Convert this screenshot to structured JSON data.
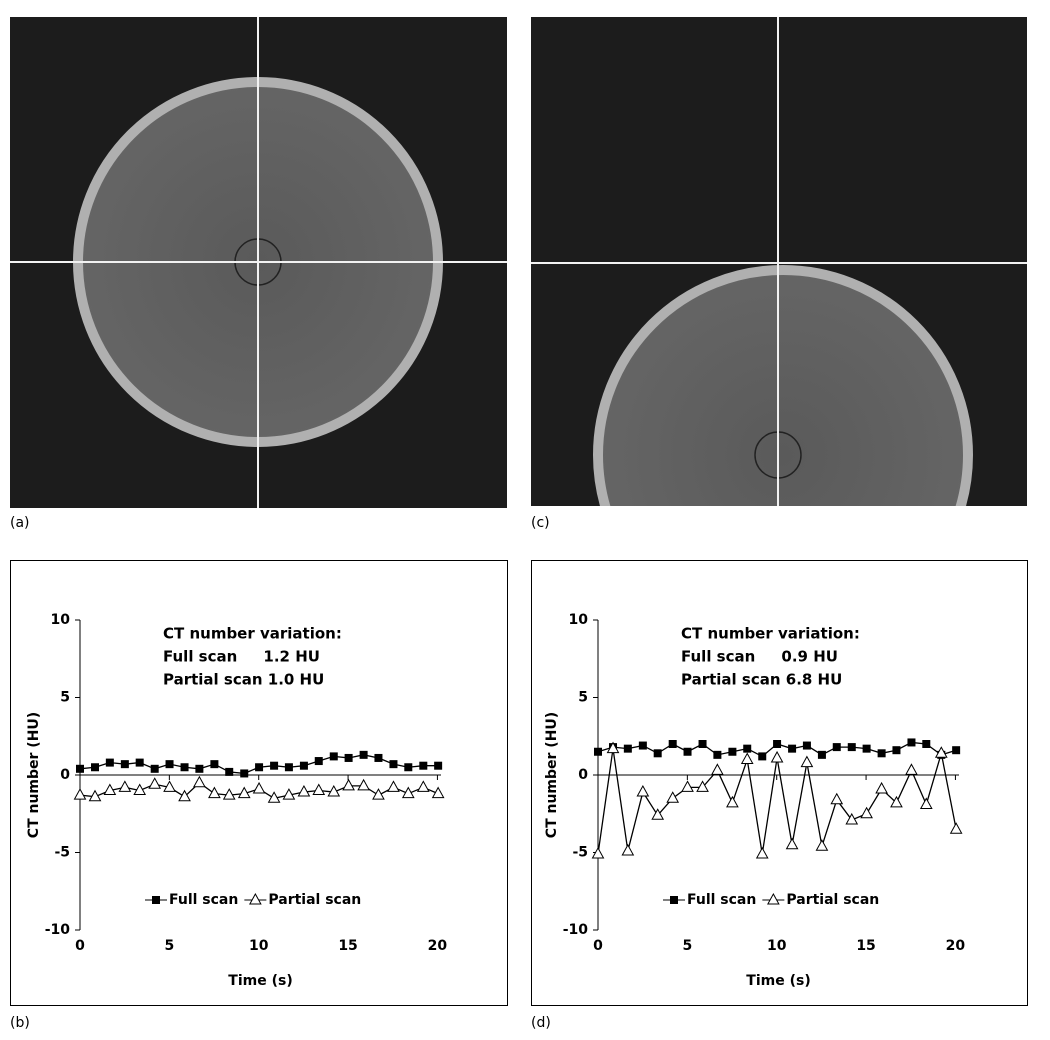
{
  "panels": [
    "(a)",
    "(b)",
    "(c)",
    "(d)"
  ],
  "chart_data": [
    {
      "type": "line",
      "annotations": [
        "CT number variation:",
        "Full scan     1.2 HU",
        "Partial scan 1.0 HU"
      ],
      "x_label": "Time (s)",
      "y_label": "CT number (HU)",
      "x": [
        0,
        0.84,
        1.67,
        2.51,
        3.34,
        4.18,
        5.01,
        5.85,
        6.68,
        7.52,
        8.35,
        9.19,
        10.02,
        10.86,
        11.69,
        12.53,
        13.36,
        14.2,
        15.03,
        15.87,
        16.7,
        17.54,
        18.37,
        19.21,
        20.04
      ],
      "series": [
        {
          "name": "Full scan",
          "color": "#000000",
          "marker": "square",
          "values": [
            0.4,
            0.5,
            0.8,
            0.7,
            0.8,
            0.4,
            0.7,
            0.5,
            0.4,
            0.7,
            0.2,
            0.1,
            0.5,
            0.6,
            0.5,
            0.6,
            0.9,
            1.2,
            1.1,
            1.3,
            1.1,
            0.7,
            0.5,
            0.6,
            0.6
          ]
        },
        {
          "name": "Partial scan",
          "color": "#000000",
          "marker": "triangle",
          "values": [
            -1.3,
            -1.4,
            -1.0,
            -0.8,
            -1.0,
            -0.6,
            -0.8,
            -1.4,
            -0.5,
            -1.2,
            -1.3,
            -1.2,
            -0.9,
            -1.5,
            -1.3,
            -1.1,
            -1.0,
            -1.1,
            -0.7,
            -0.7,
            -1.3,
            -0.8,
            -1.2,
            -0.8,
            -1.2
          ]
        }
      ],
      "xlim": [
        0,
        20.2
      ],
      "ylim": [
        -10,
        10
      ],
      "xticks": [
        0,
        5,
        10,
        15,
        20
      ],
      "yticks": [
        -10,
        -5,
        0,
        5,
        10
      ],
      "legend": "bottom"
    },
    {
      "type": "line",
      "annotations": [
        "CT number variation:",
        "Full scan     0.9 HU",
        "Partial scan 6.8 HU"
      ],
      "x_label": "Time (s)",
      "y_label": "CT number (HU)",
      "x": [
        0,
        0.84,
        1.67,
        2.51,
        3.34,
        4.18,
        5.01,
        5.85,
        6.68,
        7.52,
        8.35,
        9.19,
        10.02,
        10.86,
        11.69,
        12.53,
        13.36,
        14.2,
        15.03,
        15.87,
        16.7,
        17.54,
        18.37,
        19.21,
        20.04
      ],
      "series": [
        {
          "name": "Full scan",
          "color": "#000000",
          "marker": "square",
          "values": [
            1.5,
            1.8,
            1.7,
            1.9,
            1.4,
            2.0,
            1.5,
            2.0,
            1.3,
            1.5,
            1.7,
            1.2,
            2.0,
            1.7,
            1.9,
            1.3,
            1.8,
            1.8,
            1.7,
            1.4,
            1.6,
            2.1,
            2.0,
            1.3,
            1.6
          ]
        },
        {
          "name": "Partial scan",
          "color": "#000000",
          "marker": "triangle",
          "values": [
            -5.1,
            1.7,
            -4.9,
            -1.1,
            -2.6,
            -1.5,
            -0.8,
            -0.8,
            0.3,
            -1.8,
            1.0,
            -5.1,
            1.1,
            -4.5,
            0.8,
            -4.6,
            -1.6,
            -2.9,
            -2.5,
            -0.9,
            -1.8,
            0.3,
            -1.9,
            1.4,
            -3.5
          ]
        }
      ],
      "xlim": [
        0,
        20.2
      ],
      "ylim": [
        -10,
        10
      ],
      "xticks": [
        0,
        5,
        10,
        15,
        20
      ],
      "yticks": [
        -10,
        -5,
        0,
        5,
        10
      ],
      "legend": "bottom"
    }
  ]
}
